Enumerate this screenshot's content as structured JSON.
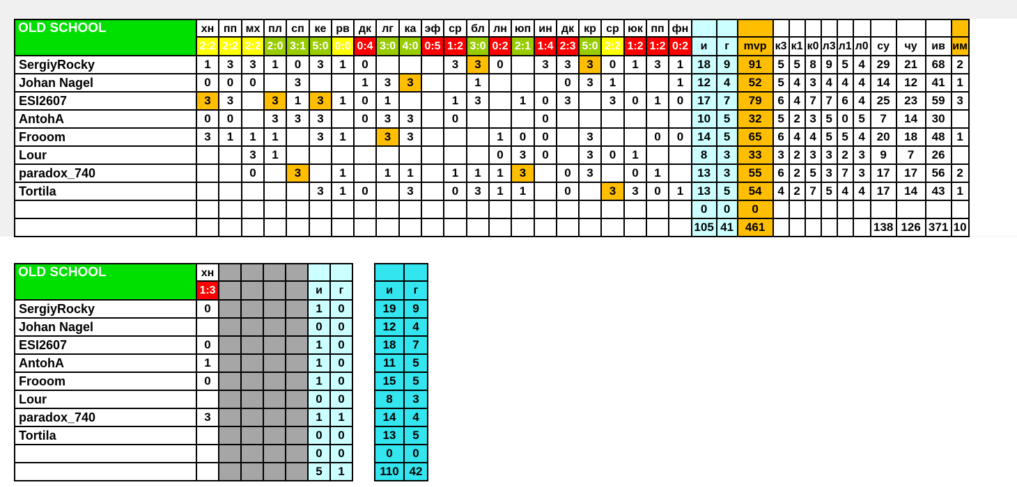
{
  "team_title": "OLD SCHOOL",
  "colors": {
    "green": "#00e000",
    "cyan": "#ccffff",
    "gold": "#ffbf00",
    "win": "#99cc00",
    "draw": "#ffff00",
    "loss": "#ff0000",
    "gray": "#a6a6a6",
    "deep_cyan": "#33e5ee"
  },
  "main_table": {
    "rounds": [
      {
        "h": "хн",
        "s": "2:2",
        "r": "draw"
      },
      {
        "h": "пп",
        "s": "2:2",
        "r": "draw"
      },
      {
        "h": "мх",
        "s": "2:2",
        "r": "draw"
      },
      {
        "h": "пл",
        "s": "2:0",
        "r": "win"
      },
      {
        "h": "сп",
        "s": "3:1",
        "r": "win"
      },
      {
        "h": "ке",
        "s": "5:0",
        "r": "win"
      },
      {
        "h": "рв",
        "s": "0:0",
        "r": "draw"
      },
      {
        "h": "дк",
        "s": "0:4",
        "r": "loss"
      },
      {
        "h": "лг",
        "s": "3:0",
        "r": "win"
      },
      {
        "h": "ка",
        "s": "4:0",
        "r": "win"
      },
      {
        "h": "эф",
        "s": "0:5",
        "r": "loss"
      },
      {
        "h": "ср",
        "s": "1:2",
        "r": "loss"
      },
      {
        "h": "бл",
        "s": "3:0",
        "r": "win"
      },
      {
        "h": "лн",
        "s": "0:2",
        "r": "loss"
      },
      {
        "h": "юп",
        "s": "2:1",
        "r": "win"
      },
      {
        "h": "ин",
        "s": "1:4",
        "r": "loss"
      },
      {
        "h": "дк",
        "s": "2:3",
        "r": "loss"
      },
      {
        "h": "кр",
        "s": "5:0",
        "r": "win"
      },
      {
        "h": "ср",
        "s": "2:2",
        "r": "draw"
      },
      {
        "h": "юк",
        "s": "1:2",
        "r": "loss"
      },
      {
        "h": "пп",
        "s": "1:2",
        "r": "loss"
      },
      {
        "h": "фн",
        "s": "0:2",
        "r": "loss"
      }
    ],
    "stat_headers": [
      "и",
      "г",
      "mvp",
      "к3",
      "к1",
      "к0",
      "л3",
      "л1",
      "л0",
      "су",
      "чу",
      "ив",
      "им"
    ],
    "players": [
      {
        "name": "SergiyRocky",
        "cells": [
          "1",
          "3",
          "3",
          "1",
          "0",
          "3",
          "1",
          "0",
          "",
          "",
          "",
          "3",
          "3",
          "0",
          "",
          "3",
          "3",
          "3",
          "0",
          "1",
          "3",
          "1"
        ],
        "hl": [
          12,
          17
        ],
        "stats": [
          "18",
          "9",
          "91",
          "5",
          "5",
          "8",
          "9",
          "5",
          "4",
          "29",
          "21",
          "68",
          "2"
        ]
      },
      {
        "name": "Johan Nagel",
        "cells": [
          "0",
          "0",
          "0",
          "",
          "3",
          "",
          "",
          "1",
          "3",
          "3",
          "",
          "",
          "1",
          "",
          "",
          "",
          "0",
          "3",
          "1",
          "",
          "",
          "1"
        ],
        "hl": [
          9
        ],
        "stats": [
          "12",
          "4",
          "52",
          "5",
          "4",
          "3",
          "4",
          "4",
          "4",
          "14",
          "12",
          "41",
          "1"
        ]
      },
      {
        "name": "ESI2607",
        "cells": [
          "3",
          "3",
          "",
          "3",
          "1",
          "3",
          "1",
          "0",
          "1",
          "",
          "",
          "1",
          "3",
          "",
          "1",
          "0",
          "3",
          "",
          "3",
          "0",
          "1",
          "0"
        ],
        "hl": [
          0,
          3,
          5
        ],
        "stats": [
          "17",
          "7",
          "79",
          "6",
          "4",
          "7",
          "7",
          "6",
          "4",
          "25",
          "23",
          "59",
          "3"
        ]
      },
      {
        "name": "AntohA",
        "cells": [
          "0",
          "0",
          "",
          "3",
          "3",
          "3",
          "",
          "0",
          "3",
          "3",
          "",
          "0",
          "",
          "",
          "",
          "0",
          "",
          "",
          "",
          "",
          "",
          ""
        ],
        "hl": [],
        "stats": [
          "10",
          "5",
          "32",
          "5",
          "2",
          "3",
          "5",
          "0",
          "5",
          "7",
          "14",
          "30",
          ""
        ]
      },
      {
        "name": "Frooom",
        "cells": [
          "3",
          "1",
          "1",
          "1",
          "",
          "3",
          "1",
          "",
          "3",
          "3",
          "",
          "",
          "",
          "1",
          "0",
          "0",
          "",
          "3",
          "",
          "",
          "0",
          "0"
        ],
        "hl": [
          8
        ],
        "stats": [
          "14",
          "5",
          "65",
          "6",
          "4",
          "4",
          "5",
          "5",
          "4",
          "20",
          "18",
          "48",
          "1"
        ]
      },
      {
        "name": "Lour",
        "cells": [
          "",
          "",
          "3",
          "1",
          "",
          "",
          "",
          "",
          "",
          "",
          "",
          "",
          "",
          "0",
          "3",
          "0",
          "",
          "3",
          "0",
          "1",
          "",
          ""
        ],
        "hl": [],
        "stats": [
          "8",
          "3",
          "33",
          "3",
          "2",
          "3",
          "3",
          "2",
          "3",
          "9",
          "7",
          "26",
          ""
        ]
      },
      {
        "name": "paradox_740",
        "cells": [
          "",
          "",
          "0",
          "",
          "3",
          "",
          "1",
          "",
          "1",
          "1",
          "",
          "1",
          "1",
          "1",
          "3",
          "",
          "0",
          "3",
          "",
          "0",
          "1",
          ""
        ],
        "hl": [
          4,
          14
        ],
        "stats": [
          "13",
          "3",
          "55",
          "6",
          "2",
          "5",
          "3",
          "7",
          "3",
          "17",
          "17",
          "56",
          "2"
        ]
      },
      {
        "name": "Tortila",
        "cells": [
          "",
          "",
          "",
          "",
          "",
          "3",
          "1",
          "0",
          "",
          "3",
          "",
          "0",
          "3",
          "1",
          "1",
          "",
          "0",
          "",
          "3",
          "3",
          "0",
          "1"
        ],
        "hl": [
          18
        ],
        "stats": [
          "13",
          "5",
          "54",
          "4",
          "2",
          "7",
          "5",
          "4",
          "4",
          "17",
          "14",
          "43",
          "1"
        ]
      },
      {
        "name": "",
        "cells": [
          "",
          "",
          "",
          "",
          "",
          "",
          "",
          "",
          "",
          "",
          "",
          "",
          "",
          "",
          "",
          "",
          "",
          "",
          "",
          "",
          "",
          ""
        ],
        "hl": [],
        "stats": [
          "0",
          "0",
          "0",
          "",
          "",
          "",
          "",
          "",
          "",
          "",
          "",
          "",
          ""
        ]
      }
    ],
    "totals": [
      "105",
      "41",
      "461",
      "",
      "",
      "",
      "",
      "",
      "",
      "138",
      "126",
      "371",
      "10"
    ]
  },
  "second_table": {
    "round": {
      "h": "хн",
      "s": "1:3",
      "r": "loss"
    },
    "ig_headers": [
      "и",
      "г"
    ],
    "players": [
      {
        "name": "SergiyRocky",
        "v": "0",
        "i": "1",
        "g": "0",
        "ti": "19",
        "tg": "9"
      },
      {
        "name": "Johan Nagel",
        "v": "",
        "i": "0",
        "g": "0",
        "ti": "12",
        "tg": "4"
      },
      {
        "name": "ESI2607",
        "v": "0",
        "i": "1",
        "g": "0",
        "ti": "18",
        "tg": "7"
      },
      {
        "name": "AntohA",
        "v": "1",
        "i": "1",
        "g": "0",
        "ti": "11",
        "tg": "5"
      },
      {
        "name": "Frooom",
        "v": "0",
        "i": "1",
        "g": "0",
        "ti": "15",
        "tg": "5"
      },
      {
        "name": "Lour",
        "v": "",
        "i": "0",
        "g": "0",
        "ti": "8",
        "tg": "3"
      },
      {
        "name": "paradox_740",
        "v": "3",
        "i": "1",
        "g": "1",
        "ti": "14",
        "tg": "4"
      },
      {
        "name": "Tortila",
        "v": "",
        "i": "0",
        "g": "0",
        "ti": "13",
        "tg": "5"
      },
      {
        "name": "",
        "v": "",
        "i": "0",
        "g": "0",
        "ti": "0",
        "tg": "0"
      }
    ],
    "totals": {
      "i": "5",
      "g": "1",
      "ti": "110",
      "tg": "42"
    }
  }
}
